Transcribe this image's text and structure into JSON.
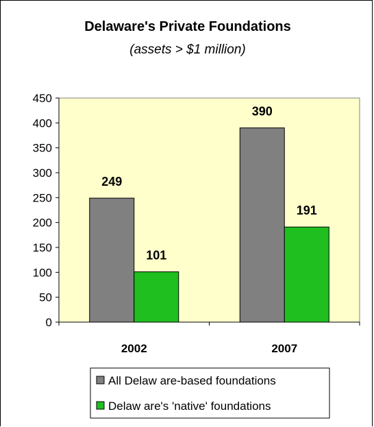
{
  "chart_data": {
    "type": "bar",
    "title": "Delaware's Private Foundations",
    "subtitle": "(assets > $1 million)",
    "categories": [
      "2002",
      "2007"
    ],
    "series": [
      {
        "name": "All Delaw are-based foundations",
        "values": [
          249,
          390
        ],
        "color": "#808080"
      },
      {
        "name": "Delaw are's 'native' foundations",
        "values": [
          101,
          191
        ],
        "color": "#1fbf1f"
      }
    ],
    "ylim": [
      0,
      450
    ],
    "yticks": [
      0,
      50,
      100,
      150,
      200,
      250,
      300,
      350,
      400,
      450
    ],
    "plot_background": "#ffffcc",
    "grid": false,
    "legend_position": "bottom"
  }
}
